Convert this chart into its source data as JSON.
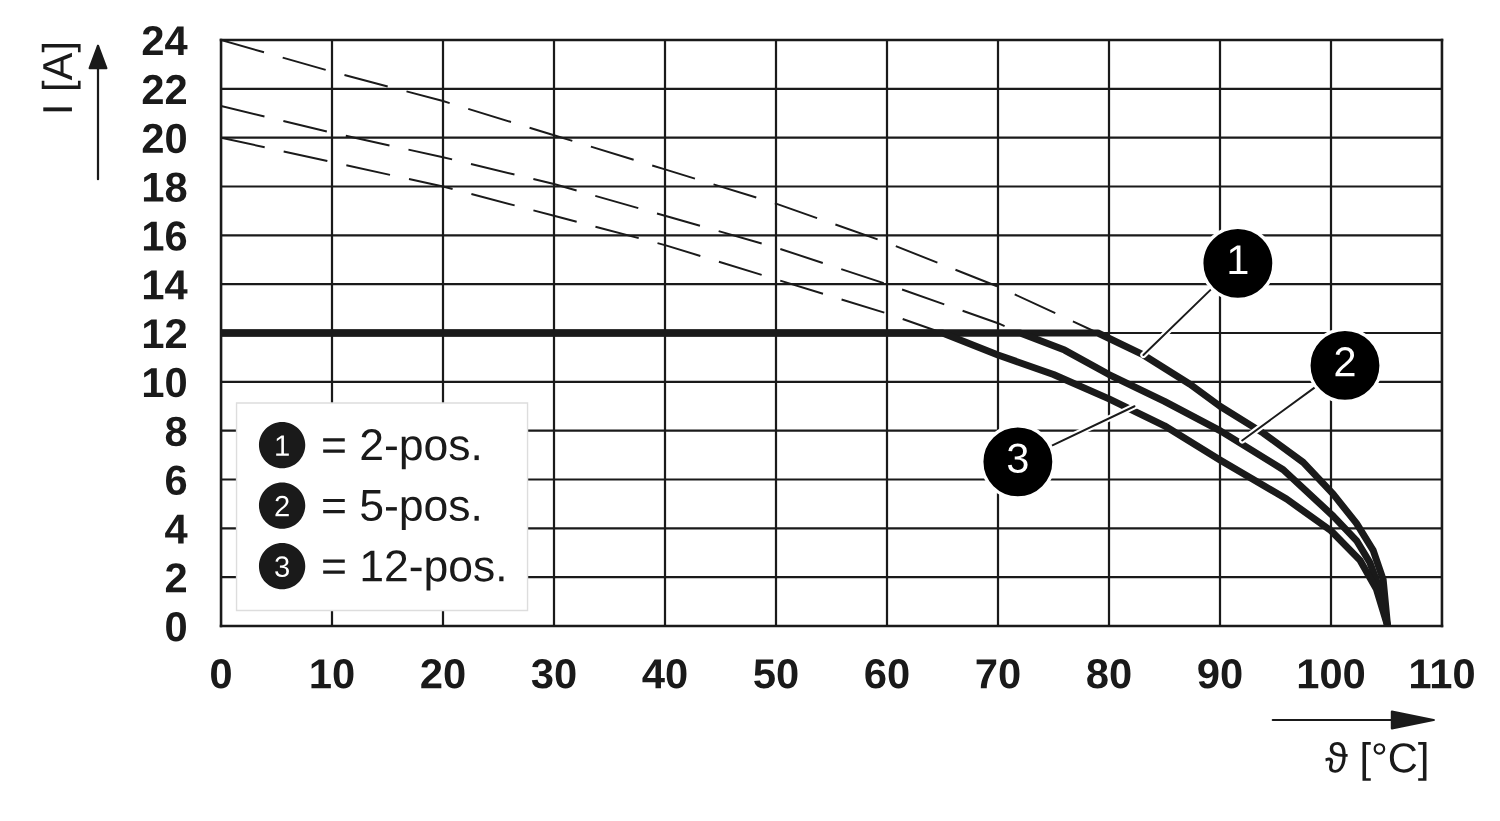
{
  "chart_data": {
    "type": "line",
    "xlabel": "ϑ [°C]",
    "ylabel": "I [A]",
    "xlim": [
      0,
      110
    ],
    "ylim": [
      0,
      24
    ],
    "xticks": [
      0,
      10,
      20,
      30,
      40,
      50,
      60,
      70,
      80,
      90,
      100,
      110
    ],
    "yticks": [
      0,
      2,
      4,
      6,
      8,
      10,
      12,
      14,
      16,
      18,
      20,
      22,
      24
    ],
    "grid": true,
    "legend": "bottom left",
    "series": [
      {
        "name": "= 2-pos.",
        "color": "#1a1a1a",
        "line_style": "solid",
        "x": [
          0,
          79,
          83.1,
          87.3,
          90,
          93.9,
          97.5,
          100.2,
          102.3,
          103.8,
          104.7,
          105.1
        ],
        "values": [
          12,
          12,
          11.1,
          9.9,
          9.0,
          7.9,
          6.7,
          5.4,
          4.2,
          3.1,
          1.9,
          0
        ]
      },
      {
        "name": "= 5-pos.",
        "color": "#1a1a1a",
        "line_style": "solid",
        "x": [
          0,
          72,
          76,
          80,
          85,
          90,
          95.7,
          100.2,
          102.3,
          103.5,
          104.4,
          105.1
        ],
        "values": [
          12,
          12,
          11.3,
          10.3,
          9.2,
          8.0,
          6.4,
          4.5,
          3.5,
          2.6,
          1.5,
          0
        ]
      },
      {
        "name": "= 12-pos.",
        "color": "#1a1a1a",
        "line_style": "solid",
        "x": [
          0,
          65,
          70,
          75,
          80,
          85,
          90,
          93,
          96,
          100,
          102.6,
          104.1,
          105.1
        ],
        "values": [
          12,
          12,
          11.1,
          10.3,
          9.3,
          8.2,
          6.8,
          6.0,
          5.2,
          3.9,
          2.7,
          1.5,
          0
        ]
      },
      {
        "color": "#1a1a1a",
        "line_style": "dashed",
        "x": [
          0,
          10,
          20,
          30,
          40,
          50,
          60,
          70,
          79
        ],
        "values": [
          24,
          22.7,
          21.5,
          20.1,
          18.7,
          17.3,
          15.7,
          13.9,
          12.0
        ]
      },
      {
        "color": "#1a1a1a",
        "line_style": "dashed",
        "x": [
          0,
          10,
          20,
          30,
          40,
          50,
          60,
          70,
          72
        ],
        "values": [
          21.3,
          20.2,
          19.2,
          18.1,
          16.8,
          15.5,
          14.0,
          12.4,
          12.0
        ]
      },
      {
        "color": "#1a1a1a",
        "line_style": "dashed",
        "x": [
          0,
          10,
          20,
          30,
          40,
          50,
          60,
          65
        ],
        "values": [
          20.0,
          19.0,
          18.0,
          16.8,
          15.6,
          14.2,
          12.8,
          12.0
        ]
      }
    ],
    "annotations": [
      {
        "text": "1",
        "x": 83.1,
        "y": 11.1
      },
      {
        "text": "2",
        "x": 92.0,
        "y": 7.6
      },
      {
        "text": "3",
        "x": 82.3,
        "y": 9.0
      }
    ]
  }
}
